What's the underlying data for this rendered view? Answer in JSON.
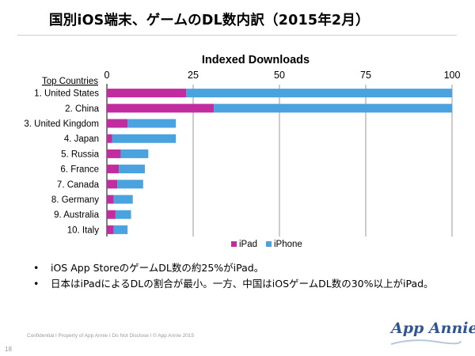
{
  "slide": {
    "title": "国別iOS端末、ゲームのDL数内訳（2015年2月）",
    "bullets": [
      "iOS App StoreのゲームDL数の約25%がiPad。",
      "日本はiPadによるDLの割合が最小。一方、中国はiOSゲームDL数の30%以上がiPad。"
    ],
    "footer": "Confidential  l  Property of App Annie  l  Do Not Disclose  l  © App Annie 2015",
    "page_number": "18",
    "brand": "App Annie"
  },
  "colors": {
    "ipad": "#c12c9e",
    "iphone": "#4aa3df",
    "grid": "#9a9a9a",
    "axis": "#000000"
  },
  "chart_data": {
    "type": "bar",
    "orientation": "horizontal",
    "stacked": true,
    "title": "Indexed Downloads",
    "category_header": "Top Countries",
    "categories": [
      "1. United States",
      "2. China",
      "3. United Kingdom",
      "4. Japan",
      "5. Russia",
      "6. France",
      "7. Canada",
      "8. Germany",
      "9. Australia",
      "10. Italy"
    ],
    "series": [
      {
        "name": "iPad",
        "color": "#c12c9e",
        "values": [
          23,
          31,
          6,
          1.5,
          4,
          3.5,
          3,
          2,
          2.5,
          2
        ]
      },
      {
        "name": "iPhone",
        "color": "#4aa3df",
        "values": [
          77,
          69,
          14,
          18.5,
          8,
          7.5,
          7.5,
          5.5,
          4.5,
          4
        ]
      }
    ],
    "xlim": [
      0,
      100
    ],
    "xticks": [
      0,
      25,
      50,
      75,
      100
    ],
    "grid": true,
    "legend_position": "bottom-center"
  }
}
